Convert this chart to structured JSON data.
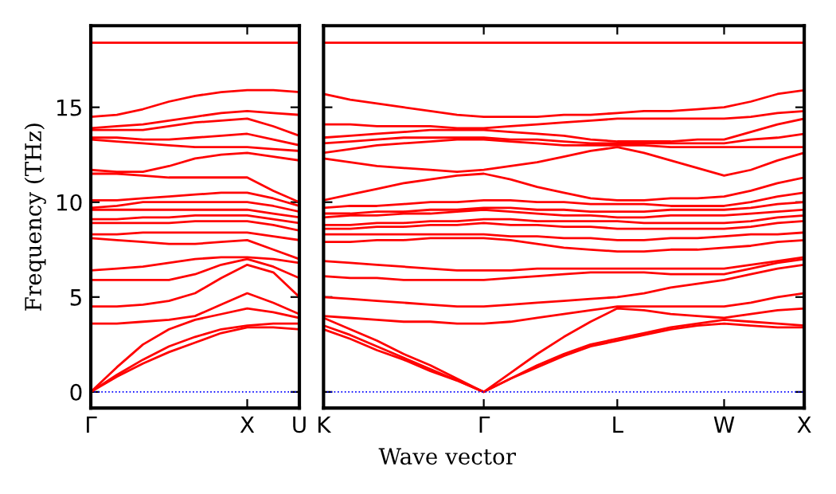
{
  "chart_data": [
    {
      "type": "line",
      "ylabel": "Frequency (THz)",
      "categories": [
        "Γ",
        null,
        null,
        null,
        null,
        null,
        "X",
        null,
        "U"
      ],
      "ylim": [
        -0.85,
        19.3
      ],
      "yticks": [
        0,
        5,
        10,
        15
      ],
      "marker": "none",
      "line_style": "solid",
      "ref_lines": [
        {
          "axis": "y",
          "value": 0,
          "color": "#0000ff",
          "line_style": "dotted"
        }
      ],
      "series": [
        {
          "color": "#ff0000",
          "values": [
            0,
            0.8,
            1.5,
            2.1,
            2.6,
            3.1,
            3.4,
            3.4,
            3.3
          ]
        },
        {
          "color": "#ff0000",
          "values": [
            0,
            0.9,
            1.7,
            2.4,
            2.9,
            3.3,
            3.5,
            3.6,
            3.6
          ]
        },
        {
          "color": "#ff0000",
          "values": [
            0,
            1.3,
            2.5,
            3.3,
            3.8,
            4.1,
            4.4,
            4.2,
            3.9
          ]
        },
        {
          "color": "#ff0000",
          "values": [
            3.6,
            3.6,
            3.7,
            3.8,
            4.0,
            4.6,
            5.2,
            4.7,
            4.1
          ]
        },
        {
          "color": "#ff0000",
          "values": [
            4.5,
            4.5,
            4.6,
            4.8,
            5.2,
            6.0,
            6.7,
            6.3,
            5.0
          ]
        },
        {
          "color": "#ff0000",
          "values": [
            5.9,
            5.9,
            5.9,
            5.9,
            6.2,
            6.7,
            7.0,
            6.6,
            6.0
          ]
        },
        {
          "color": "#ff0000",
          "values": [
            6.4,
            6.5,
            6.6,
            6.8,
            7.0,
            7.1,
            7.1,
            7.0,
            6.8
          ]
        },
        {
          "color": "#ff0000",
          "values": [
            8.1,
            8.0,
            7.9,
            7.8,
            7.8,
            7.9,
            8.0,
            7.5,
            7.0
          ]
        },
        {
          "color": "#ff0000",
          "values": [
            8.3,
            8.3,
            8.4,
            8.4,
            8.4,
            8.4,
            8.4,
            8.2,
            8.0
          ]
        },
        {
          "color": "#ff0000",
          "values": [
            8.9,
            8.9,
            8.9,
            8.9,
            9.0,
            9.0,
            9.0,
            8.8,
            8.5
          ]
        },
        {
          "color": "#ff0000",
          "values": [
            9.1,
            9.1,
            9.2,
            9.2,
            9.3,
            9.3,
            9.3,
            9.1,
            8.9
          ]
        },
        {
          "color": "#ff0000",
          "values": [
            9.6,
            9.6,
            9.6,
            9.6,
            9.6,
            9.6,
            9.6,
            9.4,
            9.2
          ]
        },
        {
          "color": "#ff0000",
          "values": [
            9.7,
            9.8,
            10.0,
            10.0,
            10.0,
            10.0,
            10.0,
            9.8,
            9.5
          ]
        },
        {
          "color": "#ff0000",
          "values": [
            10.1,
            10.1,
            10.2,
            10.3,
            10.4,
            10.5,
            10.5,
            10.2,
            9.8
          ]
        },
        {
          "color": "#ff0000",
          "values": [
            11.5,
            11.5,
            11.4,
            11.3,
            11.3,
            11.3,
            11.3,
            10.6,
            10.0
          ]
        },
        {
          "color": "#ff0000",
          "values": [
            11.7,
            11.6,
            11.6,
            11.9,
            12.3,
            12.5,
            12.6,
            12.4,
            12.2
          ]
        },
        {
          "color": "#ff0000",
          "values": [
            13.3,
            13.2,
            13.1,
            13.0,
            12.9,
            12.9,
            12.9,
            12.8,
            12.7
          ]
        },
        {
          "color": "#ff0000",
          "values": [
            13.4,
            13.4,
            13.3,
            13.3,
            13.4,
            13.5,
            13.6,
            13.3,
            13.0
          ]
        },
        {
          "color": "#ff0000",
          "values": [
            13.8,
            13.8,
            13.8,
            14.0,
            14.2,
            14.3,
            14.4,
            14.0,
            13.5
          ]
        },
        {
          "color": "#ff0000",
          "values": [
            13.9,
            14.0,
            14.1,
            14.3,
            14.5,
            14.7,
            14.8,
            14.7,
            14.6
          ]
        },
        {
          "color": "#ff0000",
          "values": [
            14.5,
            14.6,
            14.9,
            15.3,
            15.6,
            15.8,
            15.9,
            15.9,
            15.8
          ]
        },
        {
          "color": "#ff0000",
          "values": [
            18.4,
            18.4,
            18.4,
            18.4,
            18.4,
            18.4,
            18.4,
            18.4,
            18.4
          ]
        }
      ]
    },
    {
      "type": "line",
      "xlabel": "Wave vector",
      "categories": [
        "K",
        null,
        null,
        null,
        null,
        null,
        "Γ",
        null,
        null,
        null,
        null,
        "L",
        null,
        null,
        null,
        "W",
        null,
        null,
        "X"
      ],
      "ylim": [
        -0.85,
        19.3
      ],
      "yticks": [
        0,
        5,
        10,
        15
      ],
      "tick_labels": "x",
      "marker": "none",
      "line_style": "solid",
      "ref_lines": [
        {
          "axis": "y",
          "value": 0,
          "color": "#0000ff",
          "line_style": "dotted"
        }
      ],
      "series": [
        {
          "color": "#ff0000",
          "values": [
            3.3,
            2.8,
            2.2,
            1.7,
            1.1,
            0.6,
            0,
            0.7,
            1.3,
            1.9,
            2.4,
            2.7,
            3.0,
            3.3,
            3.5,
            3.6,
            3.5,
            3.4,
            3.4
          ]
        },
        {
          "color": "#ff0000",
          "values": [
            3.5,
            3.0,
            2.4,
            1.8,
            1.2,
            0.6,
            0,
            0.7,
            1.4,
            2.0,
            2.5,
            2.8,
            3.1,
            3.4,
            3.6,
            3.8,
            3.7,
            3.6,
            3.5
          ]
        },
        {
          "color": "#ff0000",
          "values": [
            3.9,
            3.3,
            2.7,
            2.0,
            1.4,
            0.7,
            0,
            1.0,
            2.0,
            2.9,
            3.7,
            4.4,
            4.3,
            4.1,
            4.0,
            3.9,
            4.1,
            4.3,
            4.4
          ]
        },
        {
          "color": "#ff0000",
          "values": [
            4.0,
            3.9,
            3.8,
            3.7,
            3.7,
            3.6,
            3.6,
            3.7,
            3.9,
            4.1,
            4.3,
            4.5,
            4.5,
            4.5,
            4.5,
            4.5,
            4.7,
            5.0,
            5.2
          ]
        },
        {
          "color": "#ff0000",
          "values": [
            5.0,
            4.9,
            4.8,
            4.7,
            4.6,
            4.5,
            4.5,
            4.6,
            4.7,
            4.8,
            4.9,
            5.0,
            5.2,
            5.5,
            5.7,
            5.9,
            6.2,
            6.5,
            6.7
          ]
        },
        {
          "color": "#ff0000",
          "values": [
            6.1,
            6.0,
            6.0,
            5.9,
            5.9,
            5.9,
            5.9,
            6.0,
            6.1,
            6.2,
            6.3,
            6.3,
            6.3,
            6.2,
            6.2,
            6.2,
            6.5,
            6.8,
            7.0
          ]
        },
        {
          "color": "#ff0000",
          "values": [
            6.9,
            6.8,
            6.7,
            6.6,
            6.5,
            6.4,
            6.4,
            6.4,
            6.5,
            6.5,
            6.5,
            6.5,
            6.5,
            6.5,
            6.5,
            6.5,
            6.7,
            6.9,
            7.1
          ]
        },
        {
          "color": "#ff0000",
          "values": [
            7.9,
            7.9,
            8.0,
            8.0,
            8.1,
            8.1,
            8.1,
            8.0,
            7.8,
            7.6,
            7.5,
            7.4,
            7.4,
            7.5,
            7.5,
            7.6,
            7.7,
            7.9,
            8.0
          ]
        },
        {
          "color": "#ff0000",
          "values": [
            8.3,
            8.3,
            8.3,
            8.3,
            8.3,
            8.3,
            8.3,
            8.2,
            8.2,
            8.1,
            8.1,
            8.0,
            8.0,
            8.1,
            8.1,
            8.2,
            8.3,
            8.3,
            8.4
          ]
        },
        {
          "color": "#ff0000",
          "values": [
            8.6,
            8.6,
            8.7,
            8.7,
            8.8,
            8.8,
            8.9,
            8.8,
            8.8,
            8.7,
            8.7,
            8.6,
            8.6,
            8.6,
            8.6,
            8.6,
            8.7,
            8.9,
            9.0
          ]
        },
        {
          "color": "#ff0000",
          "values": [
            8.8,
            8.8,
            8.9,
            8.9,
            9.0,
            9.0,
            9.1,
            9.1,
            9.0,
            9.0,
            9.0,
            9.0,
            8.9,
            8.9,
            8.9,
            8.9,
            9.0,
            9.2,
            9.3
          ]
        },
        {
          "color": "#ff0000",
          "values": [
            9.2,
            9.3,
            9.3,
            9.4,
            9.4,
            9.5,
            9.6,
            9.5,
            9.4,
            9.3,
            9.3,
            9.2,
            9.2,
            9.3,
            9.3,
            9.3,
            9.4,
            9.5,
            9.6
          ]
        },
        {
          "color": "#ff0000",
          "values": [
            9.4,
            9.4,
            9.5,
            9.5,
            9.6,
            9.6,
            9.7,
            9.7,
            9.6,
            9.6,
            9.5,
            9.5,
            9.5,
            9.6,
            9.6,
            9.6,
            9.7,
            9.9,
            10.0
          ]
        },
        {
          "color": "#ff0000",
          "values": [
            9.7,
            9.8,
            9.8,
            9.9,
            10.0,
            10.0,
            10.1,
            10.1,
            10.0,
            10.0,
            9.9,
            9.9,
            9.9,
            9.8,
            9.8,
            9.8,
            10.0,
            10.3,
            10.5
          ]
        },
        {
          "color": "#ff0000",
          "values": [
            10.1,
            10.4,
            10.7,
            11.0,
            11.2,
            11.4,
            11.5,
            11.2,
            10.8,
            10.5,
            10.2,
            10.1,
            10.1,
            10.2,
            10.2,
            10.3,
            10.6,
            11.0,
            11.3
          ]
        },
        {
          "color": "#ff0000",
          "values": [
            12.3,
            12.1,
            11.9,
            11.8,
            11.7,
            11.6,
            11.7,
            11.9,
            12.1,
            12.4,
            12.7,
            12.9,
            12.6,
            12.2,
            11.8,
            11.4,
            11.7,
            12.2,
            12.6
          ]
        },
        {
          "color": "#ff0000",
          "values": [
            12.6,
            12.8,
            13.0,
            13.1,
            13.2,
            13.3,
            13.3,
            13.2,
            13.1,
            13.0,
            13.0,
            13.0,
            13.0,
            12.9,
            12.9,
            12.9,
            12.9,
            12.9,
            12.9
          ]
        },
        {
          "color": "#ff0000",
          "values": [
            13.1,
            13.2,
            13.3,
            13.4,
            13.4,
            13.4,
            13.4,
            13.3,
            13.3,
            13.2,
            13.1,
            13.1,
            13.1,
            13.1,
            13.1,
            13.1,
            13.3,
            13.4,
            13.6
          ]
        },
        {
          "color": "#ff0000",
          "values": [
            13.4,
            13.5,
            13.6,
            13.7,
            13.8,
            13.8,
            13.8,
            13.7,
            13.6,
            13.5,
            13.3,
            13.2,
            13.2,
            13.2,
            13.3,
            13.3,
            13.7,
            14.1,
            14.4
          ]
        },
        {
          "color": "#ff0000",
          "values": [
            14.1,
            14.1,
            14.0,
            14.0,
            14.0,
            13.9,
            13.9,
            14.0,
            14.1,
            14.2,
            14.3,
            14.4,
            14.4,
            14.4,
            14.4,
            14.4,
            14.5,
            14.7,
            14.8
          ]
        },
        {
          "color": "#ff0000",
          "values": [
            15.7,
            15.4,
            15.2,
            15.0,
            14.8,
            14.6,
            14.5,
            14.5,
            14.5,
            14.6,
            14.6,
            14.7,
            14.8,
            14.8,
            14.9,
            15.0,
            15.3,
            15.7,
            15.9
          ]
        },
        {
          "color": "#ff0000",
          "values": [
            18.4,
            18.4,
            18.4,
            18.4,
            18.4,
            18.4,
            18.4,
            18.4,
            18.4,
            18.4,
            18.4,
            18.4,
            18.4,
            18.4,
            18.4,
            18.4,
            18.4,
            18.4,
            18.4
          ]
        }
      ]
    }
  ]
}
